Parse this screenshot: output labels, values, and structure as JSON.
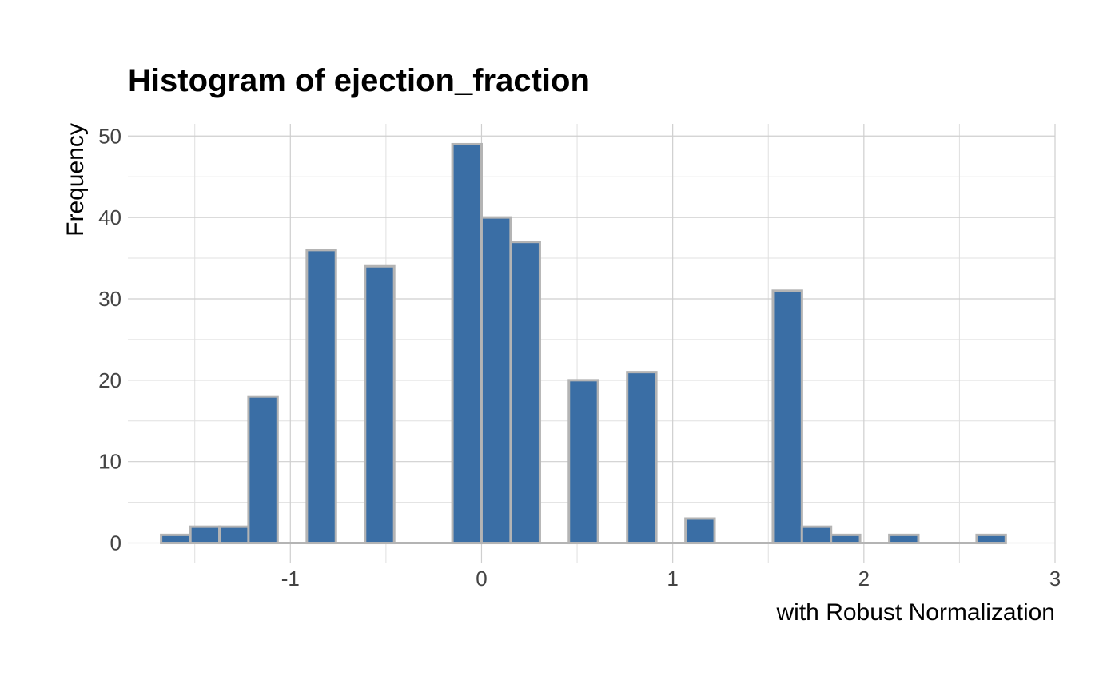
{
  "chart_data": {
    "type": "bar",
    "title": "Histogram of ejection_fraction",
    "xlabel": "with Robust Normalization",
    "ylabel": "Frequency",
    "xlim": [
      -1.85,
      3.0
    ],
    "ylim": [
      -2.5,
      51.5
    ],
    "xticks": [
      -1,
      0,
      1,
      2,
      3
    ],
    "yticks": [
      0,
      10,
      20,
      30,
      40,
      50
    ],
    "grid": true,
    "bin_width": 0.1522,
    "bin_centers": [
      -1.6,
      -1.447,
      -1.295,
      -1.143,
      -0.99,
      -0.838,
      -0.686,
      -0.533,
      -0.381,
      -0.229,
      -0.076,
      0.076,
      0.229,
      0.381,
      0.533,
      0.686,
      0.838,
      0.99,
      1.143,
      1.295,
      1.447,
      1.6,
      1.752,
      1.904,
      2.057,
      2.209,
      2.361,
      2.514,
      2.666
    ],
    "values": [
      1,
      2,
      2,
      18,
      0,
      36,
      0,
      34,
      0,
      0,
      49,
      40,
      37,
      0,
      20,
      0,
      21,
      0,
      3,
      0,
      0,
      31,
      2,
      1,
      0,
      1,
      0,
      0,
      1
    ],
    "colors": {
      "fill": "#3A6EA5",
      "outline": "#B4B4B4"
    }
  }
}
